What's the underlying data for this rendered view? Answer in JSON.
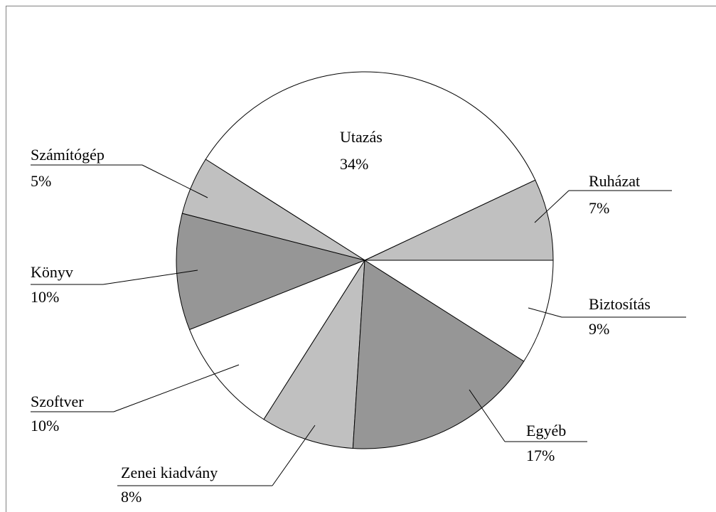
{
  "chart_data": {
    "type": "pie",
    "categories": [
      "Ruházat",
      "Utazás",
      "Számítógép",
      "Könyv",
      "Szoftver",
      "Zenei kiadvány",
      "Egyéb",
      "Biztosítás"
    ],
    "values": [
      7,
      34,
      5,
      10,
      10,
      8,
      17,
      9
    ],
    "value_labels": [
      "7%",
      "34%",
      "5%",
      "10%",
      "10%",
      "8%",
      "17%",
      "9%"
    ],
    "colors": [
      "#c0c0c0",
      "#ffffff",
      "#c0c0c0",
      "#969696",
      "#ffffff",
      "#c0c0c0",
      "#969696",
      "#ffffff"
    ]
  }
}
